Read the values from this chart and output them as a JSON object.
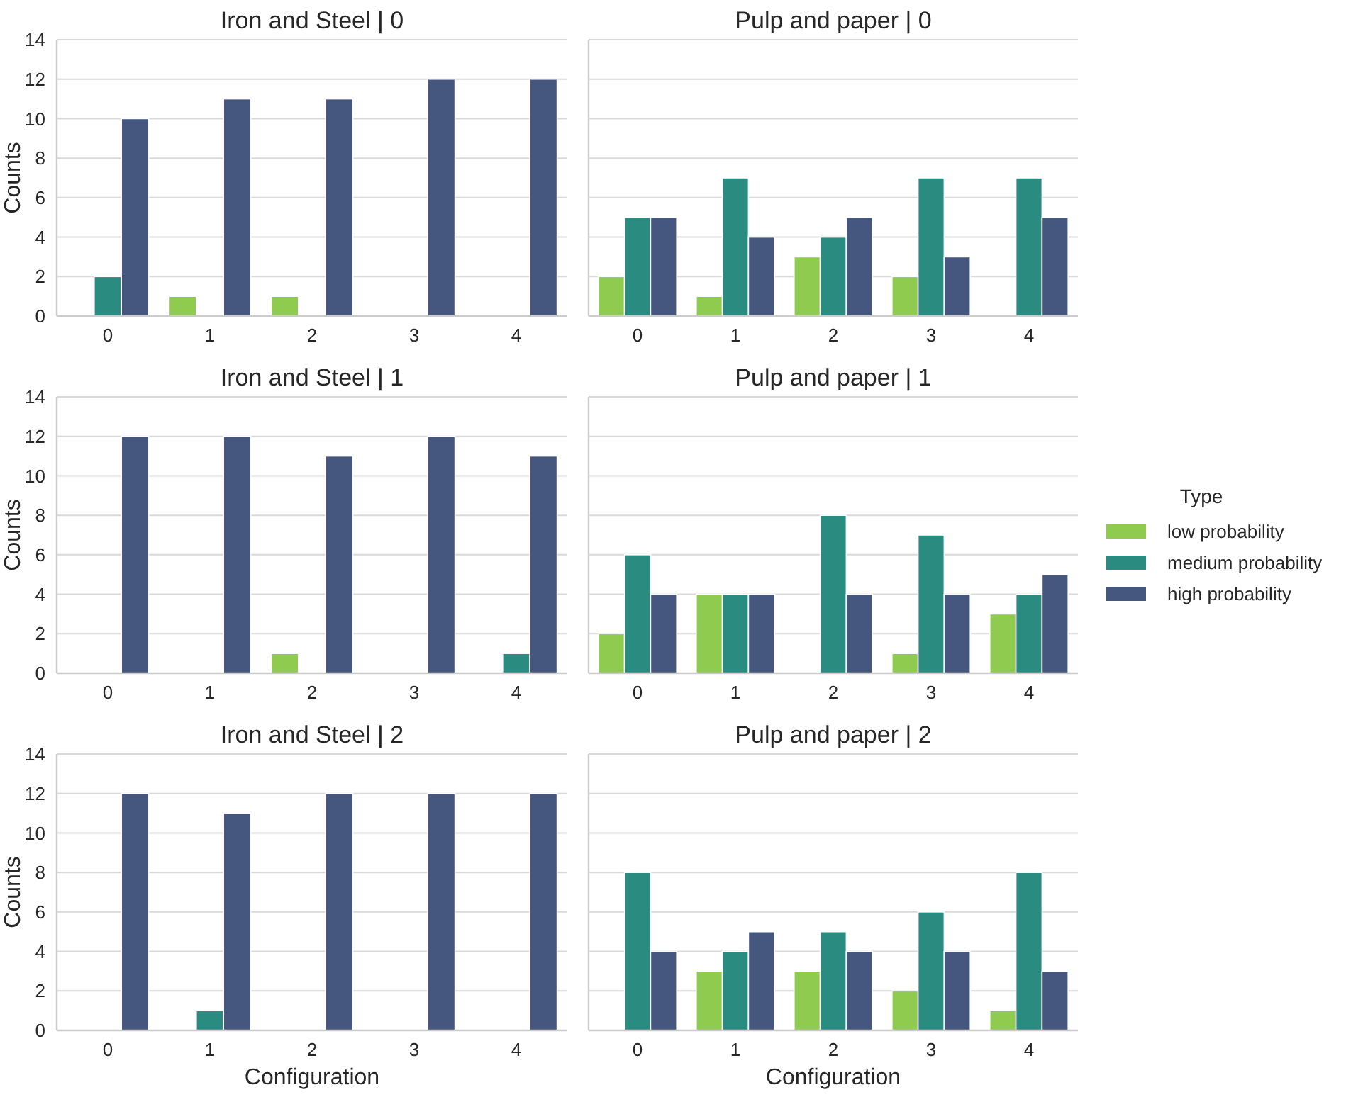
{
  "chart_data": [
    {
      "type": "bar",
      "title": "Iron and Steel | 0",
      "ylabel": "Counts",
      "categories": [
        "0",
        "1",
        "2",
        "3",
        "4"
      ],
      "series": [
        {
          "color": "#8fcb4f",
          "values": [
            0,
            1,
            1,
            0,
            0
          ]
        },
        {
          "color": "#2a8c80",
          "values": [
            2,
            0,
            0,
            0,
            0
          ]
        },
        {
          "color": "#45577f",
          "values": [
            10,
            11,
            11,
            12,
            12
          ]
        }
      ],
      "ylim": [
        0,
        14
      ],
      "yticks": [
        0,
        2,
        4,
        6,
        8,
        10,
        12,
        14
      ],
      "grid": "y",
      "legend": false
    },
    {
      "type": "bar",
      "title": "Pulp and paper | 0",
      "categories": [
        "0",
        "1",
        "2",
        "3",
        "4"
      ],
      "series": [
        {
          "color": "#8fcb4f",
          "values": [
            2,
            1,
            3,
            2,
            0
          ]
        },
        {
          "color": "#2a8c80",
          "values": [
            5,
            7,
            4,
            7,
            7
          ]
        },
        {
          "color": "#45577f",
          "values": [
            5,
            4,
            5,
            3,
            5
          ]
        }
      ],
      "ylim": [
        0,
        14
      ],
      "yticks": [
        0,
        2,
        4,
        6,
        8,
        10,
        12,
        14
      ],
      "grid": "y",
      "legend": false,
      "tick_labels": "x"
    },
    {
      "type": "bar",
      "title": "Iron and Steel | 1",
      "ylabel": "Counts",
      "categories": [
        "0",
        "1",
        "2",
        "3",
        "4"
      ],
      "series": [
        {
          "color": "#8fcb4f",
          "values": [
            0,
            0,
            1,
            0,
            0
          ]
        },
        {
          "color": "#2a8c80",
          "values": [
            0,
            0,
            0,
            0,
            1
          ]
        },
        {
          "color": "#45577f",
          "values": [
            12,
            12,
            11,
            12,
            11
          ]
        }
      ],
      "ylim": [
        0,
        14
      ],
      "yticks": [
        0,
        2,
        4,
        6,
        8,
        10,
        12,
        14
      ],
      "grid": "y",
      "legend": false
    },
    {
      "type": "bar",
      "title": "Pulp and paper | 1",
      "legend_title": "Type",
      "categories": [
        "0",
        "1",
        "2",
        "3",
        "4"
      ],
      "series": [
        {
          "name": "low probability",
          "color": "#8fcb4f",
          "values": [
            2,
            4,
            0,
            1,
            3
          ]
        },
        {
          "name": "medium probability",
          "color": "#2a8c80",
          "values": [
            6,
            4,
            8,
            7,
            4
          ]
        },
        {
          "name": "high probability",
          "color": "#45577f",
          "values": [
            4,
            4,
            4,
            4,
            5
          ]
        }
      ],
      "ylim": [
        0,
        14
      ],
      "yticks": [
        0,
        2,
        4,
        6,
        8,
        10,
        12,
        14
      ],
      "grid": "y",
      "legend": "right",
      "tick_labels": "x"
    },
    {
      "type": "bar",
      "title": "Iron and Steel | 2",
      "ylabel": "Counts",
      "xlabel": "Configuration",
      "categories": [
        "0",
        "1",
        "2",
        "3",
        "4"
      ],
      "series": [
        {
          "color": "#8fcb4f",
          "values": [
            0,
            0,
            0,
            0,
            0
          ]
        },
        {
          "color": "#2a8c80",
          "values": [
            0,
            1,
            0,
            0,
            0
          ]
        },
        {
          "color": "#45577f",
          "values": [
            12,
            11,
            12,
            12,
            12
          ]
        }
      ],
      "ylim": [
        0,
        14
      ],
      "yticks": [
        0,
        2,
        4,
        6,
        8,
        10,
        12,
        14
      ],
      "grid": "y",
      "legend": false
    },
    {
      "type": "bar",
      "title": "Pulp and paper | 2",
      "xlabel": "Configuration",
      "categories": [
        "0",
        "1",
        "2",
        "3",
        "4"
      ],
      "series": [
        {
          "color": "#8fcb4f",
          "values": [
            0,
            3,
            3,
            2,
            1
          ]
        },
        {
          "color": "#2a8c80",
          "values": [
            8,
            4,
            5,
            6,
            8
          ]
        },
        {
          "color": "#45577f",
          "values": [
            4,
            5,
            4,
            4,
            3
          ]
        }
      ],
      "ylim": [
        0,
        14
      ],
      "yticks": [
        0,
        2,
        4,
        6,
        8,
        10,
        12,
        14
      ],
      "grid": "y",
      "legend": false,
      "tick_labels": "x"
    }
  ]
}
